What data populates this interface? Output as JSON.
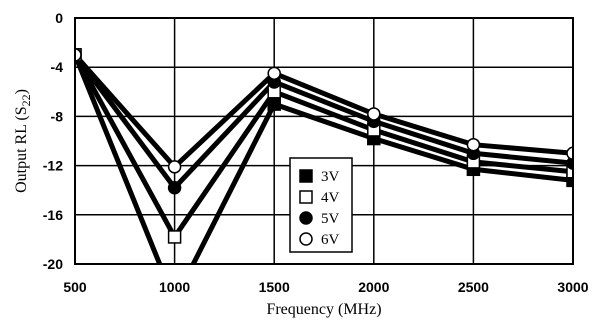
{
  "chart_data": {
    "type": "line",
    "xlabel": "Frequency (MHz)",
    "ylabel_main": "Output RL (S",
    "ylabel_sub": "22",
    "ylabel_close": ")",
    "xlim": [
      500,
      3000
    ],
    "ylim": [
      -20,
      0
    ],
    "x_ticks": [
      500,
      1000,
      1500,
      2000,
      2500,
      3000
    ],
    "y_ticks": [
      0,
      -4,
      -8,
      -12,
      -16,
      -20
    ],
    "grid": true,
    "legend_position": "center",
    "series": [
      {
        "name": "3V",
        "marker": "filled-square",
        "x": [
          500,
          1000,
          1500,
          2000,
          2500,
          3000
        ],
        "y": [
          -3,
          -23,
          -7,
          -9.8,
          -12.3,
          -13.2
        ]
      },
      {
        "name": "4V",
        "marker": "open-square",
        "x": [
          500,
          1000,
          1500,
          2000,
          2500,
          3000
        ],
        "y": [
          -3,
          -17.8,
          -6,
          -9.1,
          -11.7,
          -12.5
        ]
      },
      {
        "name": "5V",
        "marker": "filled-circle",
        "x": [
          500,
          1000,
          1500,
          2000,
          2500,
          3000
        ],
        "y": [
          -3,
          -13.8,
          -5.2,
          -8.4,
          -11,
          -11.8
        ]
      },
      {
        "name": "6V",
        "marker": "open-circle",
        "x": [
          500,
          1000,
          1500,
          2000,
          2500,
          3000
        ],
        "y": [
          -3,
          -12.1,
          -4.5,
          -7.8,
          -10.3,
          -11
        ]
      }
    ]
  }
}
